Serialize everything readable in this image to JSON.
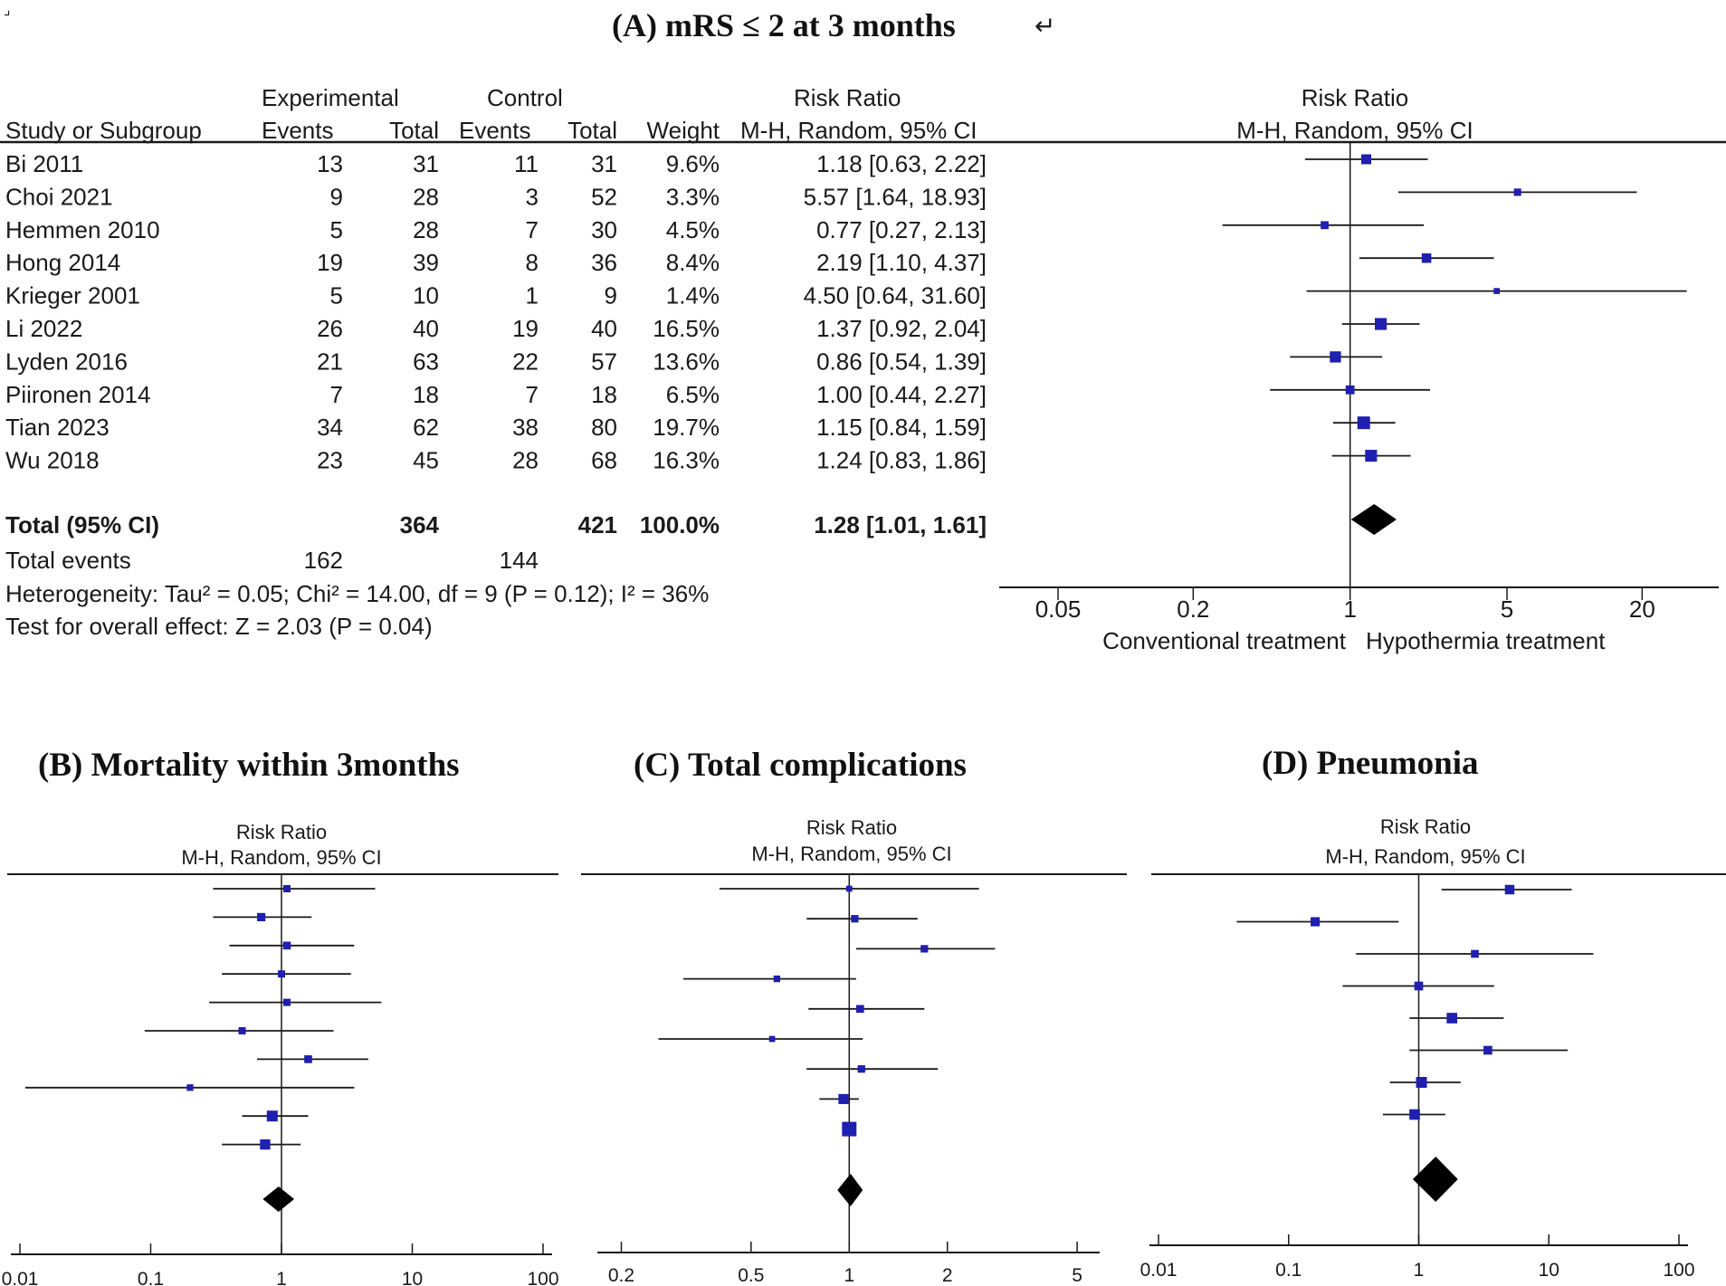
{
  "panel_a": {
    "corner_mark": "⌟",
    "title": "(A)  mRS ≤ 2 at 3 months",
    "return_mark": "↵",
    "col_group_experimental": "Experimental",
    "col_group_control": "Control",
    "col_group_risk_ratio": "Risk Ratio",
    "col_study": "Study or Subgroup",
    "col_events": "Events",
    "col_total": "Total",
    "col_weight": "Weight",
    "col_method": "M-H, Random, 95% CI",
    "plot_header": "Risk Ratio",
    "plot_subheader": "M-H, Random, 95% CI",
    "rows": [
      {
        "study": "Bi 2011",
        "e_events": "13",
        "e_total": "31",
        "c_events": "11",
        "c_total": "31",
        "weight": "9.6%",
        "ci_text": "1.18 [0.63, 2.22]"
      },
      {
        "study": "Choi 2021",
        "e_events": "9",
        "e_total": "28",
        "c_events": "3",
        "c_total": "52",
        "weight": "3.3%",
        "ci_text": "5.57 [1.64, 18.93]"
      },
      {
        "study": "Hemmen 2010",
        "e_events": "5",
        "e_total": "28",
        "c_events": "7",
        "c_total": "30",
        "weight": "4.5%",
        "ci_text": "0.77 [0.27, 2.13]"
      },
      {
        "study": "Hong 2014",
        "e_events": "19",
        "e_total": "39",
        "c_events": "8",
        "c_total": "36",
        "weight": "8.4%",
        "ci_text": "2.19 [1.10, 4.37]"
      },
      {
        "study": "Krieger 2001",
        "e_events": "5",
        "e_total": "10",
        "c_events": "1",
        "c_total": "9",
        "weight": "1.4%",
        "ci_text": "4.50 [0.64, 31.60]"
      },
      {
        "study": "Li 2022",
        "e_events": "26",
        "e_total": "40",
        "c_events": "19",
        "c_total": "40",
        "weight": "16.5%",
        "ci_text": "1.37 [0.92, 2.04]"
      },
      {
        "study": "Lyden 2016",
        "e_events": "21",
        "e_total": "63",
        "c_events": "22",
        "c_total": "57",
        "weight": "13.6%",
        "ci_text": "0.86 [0.54, 1.39]"
      },
      {
        "study": "Piironen 2014",
        "e_events": "7",
        "e_total": "18",
        "c_events": "7",
        "c_total": "18",
        "weight": "6.5%",
        "ci_text": "1.00 [0.44, 2.27]"
      },
      {
        "study": "Tian 2023",
        "e_events": "34",
        "e_total": "62",
        "c_events": "38",
        "c_total": "80",
        "weight": "19.7%",
        "ci_text": "1.15 [0.84, 1.59]"
      },
      {
        "study": "Wu 2018",
        "e_events": "23",
        "e_total": "45",
        "c_events": "28",
        "c_total": "68",
        "weight": "16.3%",
        "ci_text": "1.24 [0.83, 1.86]"
      }
    ],
    "total_label": "Total (95% CI)",
    "total_e": "364",
    "total_c": "421",
    "total_weight": "100.0%",
    "total_ci_text": "1.28 [1.01, 1.61]",
    "events_label": "Total events",
    "events_e": "162",
    "events_c": "144",
    "heterogeneity": "Heterogeneity: Tau² = 0.05; Chi² = 14.00, df = 9 (P = 0.12); I² = 36%",
    "overall_effect": "Test for overall effect: Z = 2.03 (P = 0.04)",
    "favours_left": "Conventional treatment",
    "favours_right": "Hypothermia treatment"
  },
  "colors": {
    "marker": "#1f1fb0",
    "line": "#1a1a1a",
    "diamond": "#000000"
  },
  "chart_data": [
    {
      "type": "forest",
      "title": "(A) mRS ≤ 2 at 3 months",
      "scale": "log",
      "xlim": [
        0.03,
        40
      ],
      "ticks": [
        0.05,
        0.2,
        1,
        5,
        20
      ],
      "tick_labels": [
        "0.05",
        "0.2",
        "1",
        "5",
        "20"
      ],
      "header": "Risk Ratio",
      "subheader": "M-H, Random, 95% CI",
      "points": [
        {
          "rr": 1.18,
          "lo": 0.63,
          "hi": 2.22,
          "w": 9.6
        },
        {
          "rr": 5.57,
          "lo": 1.64,
          "hi": 18.93,
          "w": 3.3
        },
        {
          "rr": 0.77,
          "lo": 0.27,
          "hi": 2.13,
          "w": 4.5
        },
        {
          "rr": 2.19,
          "lo": 1.1,
          "hi": 4.37,
          "w": 8.4
        },
        {
          "rr": 4.5,
          "lo": 0.64,
          "hi": 31.6,
          "w": 1.4
        },
        {
          "rr": 1.37,
          "lo": 0.92,
          "hi": 2.04,
          "w": 16.5
        },
        {
          "rr": 0.86,
          "lo": 0.54,
          "hi": 1.39,
          "w": 13.6
        },
        {
          "rr": 1.0,
          "lo": 0.44,
          "hi": 2.27,
          "w": 6.5
        },
        {
          "rr": 1.15,
          "lo": 0.84,
          "hi": 1.59,
          "w": 19.7
        },
        {
          "rr": 1.24,
          "lo": 0.83,
          "hi": 1.86,
          "w": 16.3
        }
      ],
      "overall": {
        "rr": 1.28,
        "lo": 1.01,
        "hi": 1.61
      }
    },
    {
      "type": "forest",
      "title": "(B)  Mortality within 3months",
      "scale": "log",
      "xlim": [
        0.01,
        100
      ],
      "ticks": [
        0.01,
        0.1,
        1,
        10,
        100
      ],
      "tick_labels": [
        "0.01",
        "0.1",
        "1",
        "10",
        "100"
      ],
      "header": "Risk Ratio",
      "subheader": "M-H, Random, 95% CI",
      "points": [
        {
          "rr": 1.1,
          "lo": 0.3,
          "hi": 5.2,
          "w": 3
        },
        {
          "rr": 0.7,
          "lo": 0.3,
          "hi": 1.7,
          "w": 5
        },
        {
          "rr": 1.1,
          "lo": 0.4,
          "hi": 3.6,
          "w": 4
        },
        {
          "rr": 1.0,
          "lo": 0.35,
          "hi": 3.4,
          "w": 3
        },
        {
          "rr": 1.1,
          "lo": 0.28,
          "hi": 5.8,
          "w": 3
        },
        {
          "rr": 0.5,
          "lo": 0.09,
          "hi": 2.5,
          "w": 3
        },
        {
          "rr": 1.6,
          "lo": 0.65,
          "hi": 4.6,
          "w": 4
        },
        {
          "rr": 0.2,
          "lo": 0.011,
          "hi": 3.6,
          "w": 2
        },
        {
          "rr": 0.85,
          "lo": 0.5,
          "hi": 1.6,
          "w": 12
        },
        {
          "rr": 0.75,
          "lo": 0.35,
          "hi": 1.4,
          "w": 10
        }
      ],
      "overall": {
        "rr": 0.95,
        "lo": 0.72,
        "hi": 1.25
      }
    },
    {
      "type": "forest",
      "title": "(C) Total complications",
      "scale": "log",
      "xlim": [
        0.18,
        5.5
      ],
      "ticks": [
        0.2,
        0.5,
        1,
        2,
        5
      ],
      "tick_labels": [
        "0.2",
        "0.5",
        "1",
        "2",
        "5"
      ],
      "header": "Risk Ratio",
      "subheader": "M-H, Random, 95% CI",
      "points": [
        {
          "rr": 1.0,
          "lo": 0.4,
          "hi": 2.5,
          "w": 2
        },
        {
          "rr": 1.04,
          "lo": 0.74,
          "hi": 1.62,
          "w": 5
        },
        {
          "rr": 1.7,
          "lo": 1.05,
          "hi": 2.8,
          "w": 5
        },
        {
          "rr": 0.6,
          "lo": 0.31,
          "hi": 1.05,
          "w": 3
        },
        {
          "rr": 1.08,
          "lo": 0.75,
          "hi": 1.7,
          "w": 6
        },
        {
          "rr": 0.58,
          "lo": 0.26,
          "hi": 1.1,
          "w": 2
        },
        {
          "rr": 1.09,
          "lo": 0.74,
          "hi": 1.87,
          "w": 5
        },
        {
          "rr": 0.96,
          "lo": 0.81,
          "hi": 1.07,
          "w": 14
        },
        {
          "rr": 1.0,
          "lo": 0.97,
          "hi": 1.03,
          "w": 40
        }
      ],
      "overall": {
        "rr": 1.01,
        "lo": 0.92,
        "hi": 1.1
      }
    },
    {
      "type": "forest",
      "title": "(D) Pneumonia",
      "scale": "log",
      "xlim": [
        0.01,
        100
      ],
      "ticks": [
        0.01,
        0.1,
        1,
        10,
        100
      ],
      "tick_labels": [
        "0.01",
        "0.1",
        "1",
        "10",
        "100"
      ],
      "header": "Risk Ratio",
      "subheader": "M-H, Random, 95% CI",
      "points": [
        {
          "rr": 5.0,
          "lo": 1.5,
          "hi": 15,
          "w": 8
        },
        {
          "rr": 0.16,
          "lo": 0.04,
          "hi": 0.7,
          "w": 7
        },
        {
          "rr": 2.7,
          "lo": 0.33,
          "hi": 22,
          "w": 4
        },
        {
          "rr": 1.0,
          "lo": 0.26,
          "hi": 3.8,
          "w": 6
        },
        {
          "rr": 1.8,
          "lo": 0.85,
          "hi": 4.5,
          "w": 11
        },
        {
          "rr": 3.4,
          "lo": 0.85,
          "hi": 14,
          "w": 6
        },
        {
          "rr": 1.05,
          "lo": 0.6,
          "hi": 2.1,
          "w": 12
        },
        {
          "rr": 0.93,
          "lo": 0.53,
          "hi": 1.6,
          "w": 11
        }
      ],
      "overall": {
        "rr": 1.35,
        "lo": 0.9,
        "hi": 2.0
      }
    }
  ]
}
